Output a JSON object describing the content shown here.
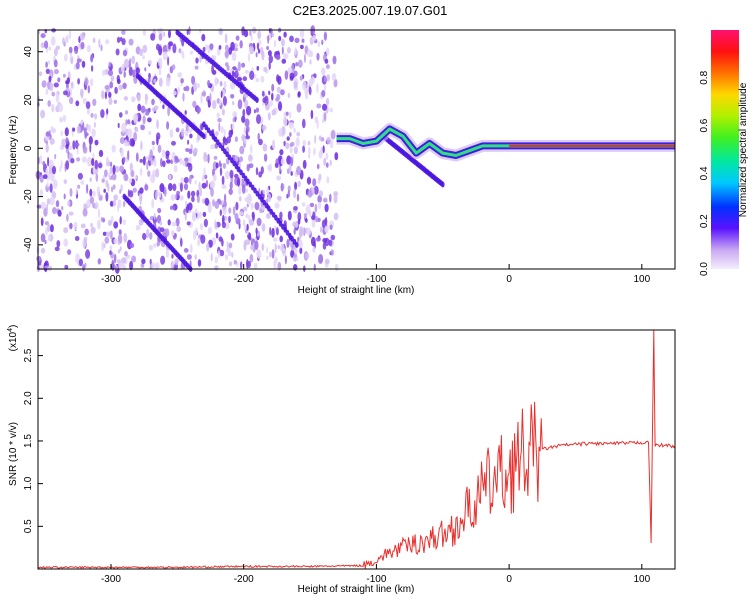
{
  "title": "C2E3.2025.007.19.07.G01",
  "colors": {
    "snr_line": "#e8312e",
    "spectrum_purple": "#6a28e0",
    "spectrum_light": "#d9c8f5"
  },
  "chart_data": [
    {
      "type": "heatmap",
      "title": "C2E3.2025.007.19.07.G01",
      "xlabel": "Height of straight line (km)",
      "ylabel": "Frequency (Hz)",
      "xlim": [
        -355,
        125
      ],
      "ylim": [
        -50,
        49
      ],
      "x_ticks": [
        -300,
        -200,
        -100,
        0,
        100
      ],
      "y_ticks": [
        -40,
        -20,
        0,
        20,
        40
      ],
      "colorbar": {
        "label": "Normalized spectral amplitude",
        "range": [
          0,
          1
        ],
        "ticks": [
          "0.0",
          "0.2",
          "0.4",
          "0.6",
          "0.8"
        ]
      },
      "carrier_track": [
        [
          -130,
          4
        ],
        [
          -120,
          4
        ],
        [
          -110,
          2
        ],
        [
          -100,
          3
        ],
        [
          -90,
          8
        ],
        [
          -80,
          5
        ],
        [
          -70,
          -2
        ],
        [
          -60,
          2
        ],
        [
          -50,
          -2
        ],
        [
          -40,
          -3
        ],
        [
          -30,
          -1
        ],
        [
          -20,
          1
        ],
        [
          -10,
          1
        ],
        [
          0,
          1
        ],
        [
          50,
          1
        ],
        [
          100,
          1
        ],
        [
          125,
          1
        ]
      ],
      "noisy_region_x": [
        -355,
        -130
      ],
      "diagonal_streaks": [
        {
          "x": [
            -250,
            -190
          ],
          "y": [
            48,
            20
          ]
        },
        {
          "x": [
            -280,
            -230
          ],
          "y": [
            30,
            5
          ]
        },
        {
          "x": [
            -230,
            -160
          ],
          "y": [
            10,
            -40
          ]
        },
        {
          "x": [
            -290,
            -240
          ],
          "y": [
            -20,
            -50
          ]
        },
        {
          "x": [
            -95,
            -50
          ],
          "y": [
            5,
            -15
          ]
        }
      ]
    },
    {
      "type": "line",
      "xlabel": "Height of straight line (km)",
      "ylabel": "SNR (10 * v/v)",
      "y_multiplier": "(x10",
      "y_multiplier_exp": "4",
      "y_multiplier_close": ")",
      "xlim": [
        -355,
        125
      ],
      "ylim": [
        0,
        2.8
      ],
      "x_ticks": [
        -300,
        -200,
        -100,
        0,
        100
      ],
      "y_ticks": [
        "0.5",
        "1.0",
        "1.5",
        "2.0",
        "2.5"
      ],
      "series": [
        {
          "values_x": [
            -355,
            -300,
            -250,
            -200,
            -150,
            -110,
            -100,
            -90,
            -80,
            -70,
            -60,
            -50,
            -40,
            -30,
            -20,
            -15,
            -10,
            0,
            10,
            20,
            30,
            40,
            60,
            80,
            100,
            105,
            107,
            109,
            110,
            115,
            125
          ],
          "values_y": [
            0.02,
            0.02,
            0.02,
            0.03,
            0.03,
            0.04,
            0.1,
            0.2,
            0.25,
            0.3,
            0.35,
            0.4,
            0.5,
            0.7,
            0.9,
            1.0,
            1.05,
            1.15,
            1.3,
            1.38,
            1.42,
            1.45,
            1.47,
            1.47,
            1.48,
            1.5,
            0.3,
            2.8,
            1.45,
            1.45,
            1.44
          ]
        }
      ]
    }
  ]
}
